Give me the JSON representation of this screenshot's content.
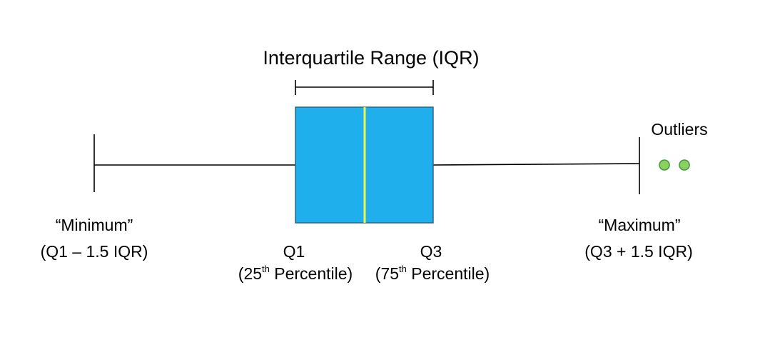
{
  "colors": {
    "box_fill": "#1fafed",
    "box_stroke": "#2a5d86",
    "median": "#f1f44a",
    "outlier_fill": "#8cd060",
    "outlier_stroke": "#3d9d3a",
    "line": "#000000"
  },
  "labels": {
    "iqr_title": "Interquartile Range (IQR)",
    "outliers": "Outliers",
    "minimum": {
      "line1": "“Minimum”",
      "line2": "(Q1 – 1.5 IQR)"
    },
    "maximum": {
      "line1": "“Maximum”",
      "line2": "(Q3 + 1.5 IQR)"
    },
    "q1": {
      "name": "Q1",
      "prefix": "(25",
      "sup": "th",
      "suffix": " Percentile)"
    },
    "q3": {
      "name": "Q3",
      "prefix": "(75",
      "sup": "th",
      "suffix": " Percentile)"
    }
  }
}
